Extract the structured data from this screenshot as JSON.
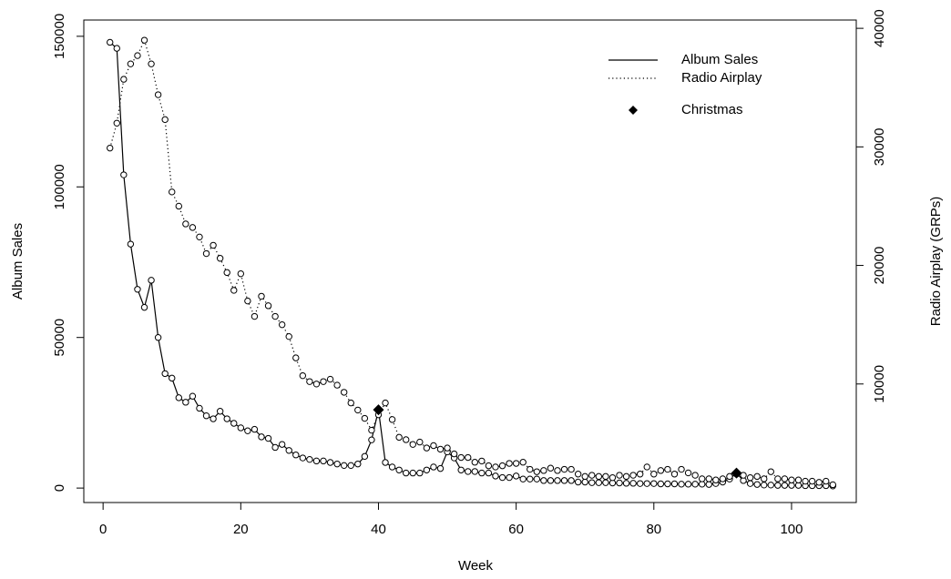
{
  "chart_data": {
    "type": "line",
    "x_label": "Week",
    "y_label": "Album Sales",
    "y2_label": "Radio Airplay (GRPs)",
    "x": [
      1,
      2,
      3,
      4,
      5,
      6,
      7,
      8,
      9,
      10,
      11,
      12,
      13,
      14,
      15,
      16,
      17,
      18,
      19,
      20,
      21,
      22,
      23,
      24,
      25,
      26,
      27,
      28,
      29,
      30,
      31,
      32,
      33,
      34,
      35,
      36,
      37,
      38,
      39,
      40,
      41,
      42,
      43,
      44,
      45,
      46,
      47,
      48,
      49,
      50,
      51,
      52,
      53,
      54,
      55,
      56,
      57,
      58,
      59,
      60,
      61,
      62,
      63,
      64,
      65,
      66,
      67,
      68,
      69,
      70,
      71,
      72,
      73,
      74,
      75,
      76,
      77,
      78,
      79,
      80,
      81,
      82,
      83,
      84,
      85,
      86,
      87,
      88,
      89,
      90,
      91,
      92,
      93,
      94,
      95,
      96,
      97,
      98,
      99,
      100,
      101,
      102,
      103,
      104,
      105,
      106
    ],
    "series": [
      {
        "name": "Album Sales",
        "color": "#000000",
        "line": "solid",
        "values": [
          148000,
          146000,
          104000,
          81000,
          66000,
          60000,
          69000,
          50000,
          38000,
          36500,
          30000,
          28500,
          30500,
          26500,
          24000,
          23000,
          25500,
          23000,
          21500,
          20000,
          19000,
          19500,
          17000,
          16500,
          13500,
          14500,
          12500,
          11000,
          10000,
          9500,
          9000,
          9000,
          8500,
          8000,
          7500,
          7500,
          8000,
          10500,
          16000,
          26000,
          8500,
          7000,
          6000,
          5000,
          5000,
          5000,
          6000,
          7000,
          6500,
          12000,
          10000,
          6000,
          5500,
          5500,
          5000,
          5000,
          4000,
          3500,
          3500,
          4000,
          3000,
          3000,
          3000,
          2500,
          2500,
          2500,
          2500,
          2500,
          2000,
          2000,
          1800,
          1800,
          1800,
          1700,
          1700,
          1600,
          1600,
          1500,
          1500,
          1500,
          1400,
          1400,
          1400,
          1300,
          1300,
          1300,
          1300,
          1200,
          1500,
          2000,
          3000,
          5000,
          2500,
          1500,
          1200,
          1000,
          1000,
          900,
          900,
          900,
          900,
          800,
          800,
          800,
          800,
          700
        ]
      },
      {
        "name": "Radio Airplay",
        "color": "#000000",
        "line": "dotted",
        "axis": "y2",
        "values": [
          29900,
          32000,
          35700,
          37000,
          37700,
          39000,
          37000,
          34400,
          32300,
          26200,
          25000,
          23500,
          23200,
          22400,
          21000,
          21700,
          20600,
          19400,
          17900,
          19300,
          17000,
          15700,
          17400,
          16600,
          15700,
          15000,
          14000,
          12200,
          10700,
          10200,
          10000,
          10200,
          10400,
          9900,
          9300,
          8400,
          7800,
          7100,
          6100,
          7400,
          8400,
          7000,
          5500,
          5300,
          4900,
          5100,
          4600,
          4800,
          4500,
          4600,
          4100,
          3800,
          3800,
          3400,
          3500,
          3100,
          3000,
          3100,
          3300,
          3300,
          3400,
          2800,
          2600,
          2700,
          2900,
          2700,
          2800,
          2800,
          2400,
          2200,
          2300,
          2200,
          2200,
          2100,
          2300,
          2200,
          2300,
          2400,
          3000,
          2400,
          2700,
          2800,
          2400,
          2800,
          2500,
          2300,
          2000,
          2000,
          1900,
          2000,
          2200,
          2400,
          2300,
          2100,
          2200,
          2000,
          2600,
          2000,
          2000,
          1900,
          1900,
          1800,
          1800,
          1700,
          1800,
          1500
        ]
      },
      {
        "name": "Christmas",
        "color": "#000000",
        "marker": "diamond",
        "x": [
          40,
          92
        ],
        "values": [
          26000,
          5000
        ]
      }
    ],
    "xlim": [
      -2.8,
      109.4
    ],
    "xticks": [
      0,
      20,
      40,
      60,
      80,
      100
    ],
    "ylim": [
      -4800,
      155400
    ],
    "yticks": [
      0,
      50000,
      100000,
      150000
    ],
    "y2lim": [
      0,
      40700
    ],
    "y2ticks": [
      10000,
      20000,
      30000,
      40000
    ],
    "legend": "top-right"
  }
}
